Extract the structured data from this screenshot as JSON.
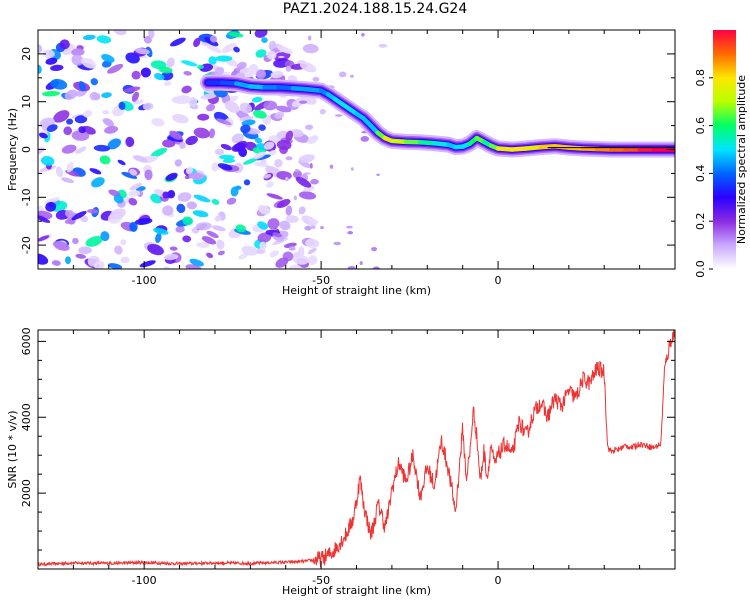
{
  "title": "PAZ1.2024.188.15.24.G24",
  "chart_data": [
    {
      "type": "heatmap",
      "panel": "spectrogram",
      "xlabel": "Height of straight line (km)",
      "ylabel": "Frequency (Hz)",
      "xlim": [
        -130,
        50
      ],
      "ylim": [
        -25,
        25
      ],
      "xticks": [
        -100,
        -50,
        0
      ],
      "yticks": [
        -20,
        -10,
        0,
        10,
        20
      ],
      "colorbar": {
        "label": "Normalized spectral amplitude",
        "range": [
          0,
          1
        ],
        "ticks": [
          0.0,
          0.2,
          0.4,
          0.6,
          0.8
        ],
        "colormap": [
          "#ffffff",
          "#c9a8ff",
          "#8a2be2",
          "#2a00ff",
          "#0066ff",
          "#00e5ff",
          "#00ff66",
          "#b7ff00",
          "#ffe600",
          "#ff6a00",
          "#ff0040"
        ]
      },
      "noise_region_x": [
        -130,
        -60
      ],
      "ridge": {
        "x": [
          -82,
          -78,
          -74,
          -70,
          -66,
          -62,
          -58,
          -54,
          -50,
          -48,
          -46,
          -44,
          -42,
          -40,
          -38,
          -36,
          -34,
          -32,
          -30,
          -26,
          -22,
          -18,
          -14,
          -12,
          -10,
          -8,
          -6,
          -4,
          -2,
          0,
          4,
          8,
          12,
          16,
          20,
          24,
          28,
          32,
          36,
          40,
          44,
          50
        ],
        "y": [
          14,
          14,
          13.8,
          13.2,
          13,
          13,
          12.8,
          12.6,
          12.3,
          11.5,
          10.5,
          9.5,
          8.5,
          7.5,
          6.5,
          5,
          3.5,
          2.4,
          1.8,
          1.6,
          1.5,
          1.3,
          1.0,
          0.5,
          0.6,
          1.2,
          2.4,
          1.6,
          0.8,
          0.2,
          0.0,
          0.2,
          0.5,
          0.7,
          0.4,
          0.2,
          0.1,
          0.0,
          0.0,
          0.0,
          0.0,
          0.0
        ],
        "amplitude": [
          0.35,
          0.35,
          0.4,
          0.5,
          0.45,
          0.4,
          0.4,
          0.5,
          0.4,
          0.45,
          0.5,
          0.5,
          0.55,
          0.45,
          0.5,
          0.45,
          0.5,
          0.8,
          0.75,
          0.7,
          0.6,
          0.55,
          0.5,
          0.45,
          0.55,
          0.45,
          0.75,
          0.55,
          0.6,
          0.7,
          0.85,
          0.75,
          0.8,
          0.85,
          0.8,
          0.85,
          0.85,
          0.9,
          0.9,
          0.95,
          1.0,
          1.0
        ]
      }
    },
    {
      "type": "line",
      "panel": "snr",
      "xlabel": "Height of straight line (km)",
      "ylabel": "SNR (10 * v/v)",
      "xlim": [
        -130,
        50
      ],
      "ylim": [
        0,
        6300
      ],
      "xticks": [
        -100,
        -50,
        0
      ],
      "yticks": [
        2000,
        4000,
        6000
      ],
      "color": "#ee3333",
      "x": [
        -130,
        -120,
        -110,
        -100,
        -90,
        -80,
        -70,
        -60,
        -55,
        -50,
        -47,
        -45,
        -43,
        -41,
        -40,
        -39,
        -38,
        -37,
        -36,
        -35,
        -34,
        -33,
        -32,
        -31,
        -30,
        -28,
        -26,
        -24,
        -22,
        -20,
        -18,
        -16,
        -14,
        -12,
        -10,
        -9,
        -8,
        -7,
        -6,
        -5,
        -4,
        -3,
        -2,
        -1,
        0,
        2,
        4,
        6,
        8,
        10,
        12,
        14,
        16,
        18,
        20,
        22,
        24,
        26,
        28,
        30,
        31,
        32,
        34,
        36,
        38,
        40,
        42,
        44,
        46,
        47,
        48,
        49,
        50
      ],
      "y": [
        120,
        160,
        150,
        170,
        140,
        160,
        150,
        180,
        200,
        260,
        420,
        650,
        900,
        1300,
        1800,
        2400,
        1700,
        1300,
        900,
        1200,
        1700,
        1500,
        1100,
        1500,
        2100,
        2800,
        2300,
        3000,
        1900,
        2700,
        2200,
        3400,
        2600,
        1500,
        3700,
        2400,
        3000,
        4200,
        3500,
        2300,
        3100,
        2400,
        3300,
        2700,
        3000,
        3300,
        3000,
        3900,
        3500,
        4100,
        4400,
        4000,
        4500,
        4300,
        4700,
        4500,
        5000,
        4900,
        5300,
        5200,
        3200,
        3100,
        3150,
        3250,
        3200,
        3300,
        3250,
        3200,
        3300,
        5200,
        5700,
        6100,
        6200
      ]
    }
  ]
}
